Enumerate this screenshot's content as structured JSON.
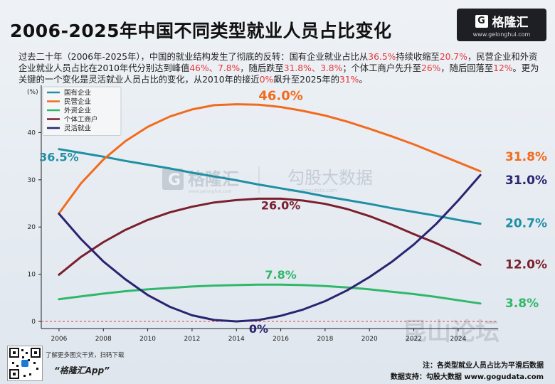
{
  "title": "2006-2025年中国不同类型就业人员占比变化",
  "logo": {
    "name": "格隆汇",
    "g_letter": "G",
    "url": "www.gelonghui.com"
  },
  "description": [
    {
      "t": "过去二十年（2006年-2025年），中国的就业结构发生了彻底的反转：国有企业就业占比从"
    },
    {
      "t": "36.5%",
      "hl": true
    },
    {
      "t": "持续收缩至"
    },
    {
      "t": "20.7%",
      "hl": true
    },
    {
      "t": "，民营企业和外资企业就业人员占比在2010年代分别达到峰值"
    },
    {
      "t": "46%、7.8%",
      "hl": true
    },
    {
      "t": "，随后跌至"
    },
    {
      "t": "31.8%、3.8%",
      "hl": true
    },
    {
      "t": "；个体工商户先升至"
    },
    {
      "t": "26%",
      "hl": true
    },
    {
      "t": "，随后回落至"
    },
    {
      "t": "12%",
      "hl": true
    },
    {
      "t": "。更为关键的一个变化是灵活就业人员占比的变化，从2010年的接近"
    },
    {
      "t": "0%",
      "hl": true
    },
    {
      "t": "飙升至2025年的"
    },
    {
      "t": "31%",
      "hl": true
    },
    {
      "t": "。"
    }
  ],
  "watermark": {
    "brand": "格隆汇",
    "brand_url": "www.gelonghui.com",
    "partner": "勾股大数据",
    "partner_url": "www.gogudata.com",
    "forum": "昆山论坛"
  },
  "footer": {
    "qr_note": "了解更多图文干货，扫码下载",
    "app_name": "“格隆汇App”",
    "note": "注：各类型就业人员占比为平滑后数据",
    "source": "数据支持：勾股大数据 www.gogudata.com"
  },
  "chart_data": {
    "type": "line",
    "title": "2006-2025年中国不同类型就业人员占比变化",
    "ylabel": "(%)",
    "xlabel": "",
    "xlim": [
      2005.2,
      2025.8
    ],
    "ylim": [
      -1.5,
      50
    ],
    "xticks": [
      2006,
      2008,
      2010,
      2012,
      2014,
      2016,
      2018,
      2020,
      2022,
      2024
    ],
    "yticks": [
      0,
      10,
      20,
      30,
      40
    ],
    "x": [
      2006,
      2007,
      2008,
      2009,
      2010,
      2011,
      2012,
      2013,
      2014,
      2015,
      2016,
      2017,
      2018,
      2019,
      2020,
      2021,
      2022,
      2023,
      2024,
      2025
    ],
    "legend_position": "top-left",
    "series": [
      {
        "name": "国有企业",
        "color": "#1f8fa3",
        "values": [
          36.5,
          35.7,
          34.9,
          34.0,
          33.2,
          32.4,
          31.5,
          30.7,
          29.9,
          29.0,
          28.2,
          27.4,
          26.5,
          25.7,
          24.9,
          24.0,
          23.2,
          22.4,
          21.5,
          20.7
        ],
        "peak_label": {
          "x": 2006,
          "y": 36.5,
          "text": "36.5%"
        },
        "end_label": "20.7%"
      },
      {
        "name": "民营企业",
        "color": "#f26b1d",
        "values": [
          22.9,
          29.3,
          34.3,
          38.2,
          41.2,
          43.4,
          44.9,
          45.8,
          46.0,
          45.9,
          45.4,
          44.6,
          43.6,
          42.3,
          40.8,
          39.2,
          37.5,
          35.6,
          33.7,
          31.8
        ],
        "peak_label": {
          "x": 2016,
          "y": 46.0,
          "text": "46.0%"
        },
        "end_label": "31.8%"
      },
      {
        "name": "外资企业",
        "color": "#2fb86a",
        "values": [
          4.7,
          5.3,
          5.9,
          6.4,
          6.8,
          7.1,
          7.4,
          7.6,
          7.7,
          7.8,
          7.8,
          7.7,
          7.5,
          7.2,
          6.8,
          6.3,
          5.8,
          5.2,
          4.5,
          3.8
        ],
        "peak_label": {
          "x": 2016,
          "y": 7.8,
          "text": "7.8%"
        },
        "end_label": "3.8%"
      },
      {
        "name": "个体工商户",
        "color": "#7a1f2e",
        "values": [
          9.9,
          13.7,
          16.8,
          19.4,
          21.5,
          23.1,
          24.3,
          25.2,
          25.7,
          26.0,
          26.0,
          25.6,
          24.9,
          23.8,
          22.3,
          20.5,
          18.5,
          16.6,
          14.4,
          12.0
        ],
        "peak_label": {
          "x": 2016,
          "y": 26.0,
          "text": "26.0%"
        },
        "end_label": "12.0%"
      },
      {
        "name": "灵活就业",
        "color": "#2a2470",
        "values": [
          22.8,
          17.4,
          12.7,
          8.9,
          5.6,
          3.1,
          1.3,
          0.3,
          0.0,
          0.3,
          1.2,
          2.5,
          4.3,
          6.6,
          9.4,
          12.6,
          16.3,
          20.6,
          25.6,
          31.0
        ],
        "peak_label": {
          "x": 2015,
          "y": 0.0,
          "text": "0%"
        },
        "end_label": "31.0%"
      }
    ]
  }
}
